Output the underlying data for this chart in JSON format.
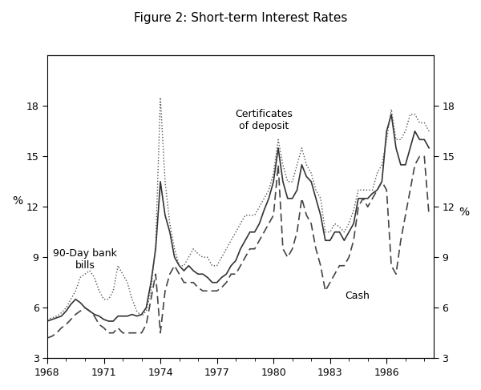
{
  "title": "Figure 2: Short-term Interest Rates",
  "ylabel_left": "%",
  "ylabel_right": "%",
  "ylim": [
    3,
    21
  ],
  "yticks": [
    3,
    6,
    9,
    12,
    15,
    18
  ],
  "xlim": [
    1968,
    1988.5
  ],
  "xticks": [
    1968,
    1971,
    1974,
    1977,
    1980,
    1983,
    1986
  ],
  "background_color": "#ffffff",
  "label_bank_bills": "90-Day bank\nbills",
  "label_certificates": "Certificates\nof deposit",
  "label_cash": "Cash",
  "years": [
    1968.0,
    1968.25,
    1968.5,
    1968.75,
    1969.0,
    1969.25,
    1969.5,
    1969.75,
    1970.0,
    1970.25,
    1970.5,
    1970.75,
    1971.0,
    1971.25,
    1971.5,
    1971.75,
    1972.0,
    1972.25,
    1972.5,
    1972.75,
    1973.0,
    1973.25,
    1973.5,
    1973.75,
    1974.0,
    1974.25,
    1974.5,
    1974.75,
    1975.0,
    1975.25,
    1975.5,
    1975.75,
    1976.0,
    1976.25,
    1976.5,
    1976.75,
    1977.0,
    1977.25,
    1977.5,
    1977.75,
    1978.0,
    1978.25,
    1978.5,
    1978.75,
    1979.0,
    1979.25,
    1979.5,
    1979.75,
    1980.0,
    1980.25,
    1980.5,
    1980.75,
    1981.0,
    1981.25,
    1981.5,
    1981.75,
    1982.0,
    1982.25,
    1982.5,
    1982.75,
    1983.0,
    1983.25,
    1983.5,
    1983.75,
    1984.0,
    1984.25,
    1984.5,
    1984.75,
    1985.0,
    1985.25,
    1985.5,
    1985.75,
    1986.0,
    1986.25,
    1986.5,
    1986.75,
    1987.0,
    1987.25,
    1987.5,
    1987.75,
    1988.0,
    1988.25
  ],
  "bank_bills": [
    5.2,
    5.3,
    5.4,
    5.5,
    5.8,
    6.2,
    6.5,
    6.3,
    6.0,
    5.8,
    5.6,
    5.5,
    5.3,
    5.2,
    5.2,
    5.5,
    5.5,
    5.5,
    5.6,
    5.5,
    5.6,
    6.0,
    7.5,
    9.5,
    13.5,
    11.5,
    10.5,
    9.0,
    8.5,
    8.2,
    8.5,
    8.2,
    8.0,
    8.0,
    7.8,
    7.5,
    7.5,
    7.8,
    8.0,
    8.5,
    8.8,
    9.5,
    10.0,
    10.5,
    10.5,
    11.0,
    11.8,
    12.5,
    13.5,
    15.5,
    13.5,
    12.5,
    12.5,
    13.0,
    14.5,
    13.8,
    13.5,
    12.5,
    11.5,
    10.0,
    10.0,
    10.5,
    10.5,
    10.0,
    10.5,
    11.0,
    12.5,
    12.5,
    12.5,
    12.8,
    13.0,
    13.5,
    16.5,
    17.5,
    15.5,
    14.5,
    14.5,
    15.5,
    16.5,
    16.0,
    16.0,
    15.5
  ],
  "certificates": [
    5.3,
    5.4,
    5.5,
    5.7,
    6.0,
    6.5,
    7.0,
    7.8,
    8.0,
    8.2,
    7.8,
    7.0,
    6.5,
    6.5,
    7.0,
    8.5,
    8.0,
    7.5,
    6.5,
    5.8,
    5.5,
    5.8,
    7.0,
    9.8,
    18.5,
    13.5,
    11.0,
    9.5,
    8.5,
    8.5,
    9.0,
    9.5,
    9.2,
    9.0,
    9.0,
    8.5,
    8.5,
    9.0,
    9.5,
    10.0,
    10.5,
    11.0,
    11.5,
    11.5,
    11.5,
    12.0,
    12.5,
    13.0,
    14.0,
    16.0,
    14.5,
    13.5,
    13.5,
    14.5,
    15.5,
    14.5,
    14.0,
    13.0,
    12.5,
    10.5,
    10.5,
    11.0,
    10.8,
    10.5,
    11.0,
    11.8,
    13.0,
    13.0,
    13.0,
    13.0,
    14.0,
    14.5,
    16.0,
    17.8,
    16.0,
    16.0,
    16.5,
    17.5,
    17.5,
    17.0,
    17.0,
    16.5
  ],
  "cash": [
    4.2,
    4.3,
    4.5,
    4.8,
    5.0,
    5.3,
    5.6,
    5.8,
    6.0,
    5.8,
    5.5,
    5.0,
    4.8,
    4.5,
    4.5,
    4.8,
    4.5,
    4.5,
    4.5,
    4.5,
    4.5,
    5.0,
    6.5,
    8.0,
    4.5,
    7.0,
    8.0,
    8.5,
    8.0,
    7.5,
    7.5,
    7.5,
    7.2,
    7.0,
    7.0,
    7.0,
    7.0,
    7.2,
    7.5,
    8.0,
    8.0,
    8.5,
    9.0,
    9.5,
    9.5,
    10.0,
    10.5,
    11.0,
    11.5,
    14.5,
    9.5,
    9.0,
    9.5,
    10.5,
    12.5,
    11.5,
    11.0,
    9.5,
    8.5,
    7.0,
    7.5,
    8.0,
    8.5,
    8.5,
    9.0,
    10.0,
    12.0,
    12.5,
    12.0,
    12.5,
    13.0,
    13.5,
    13.0,
    8.5,
    8.0,
    10.0,
    11.5,
    13.0,
    14.5,
    15.0,
    15.0,
    11.5
  ]
}
